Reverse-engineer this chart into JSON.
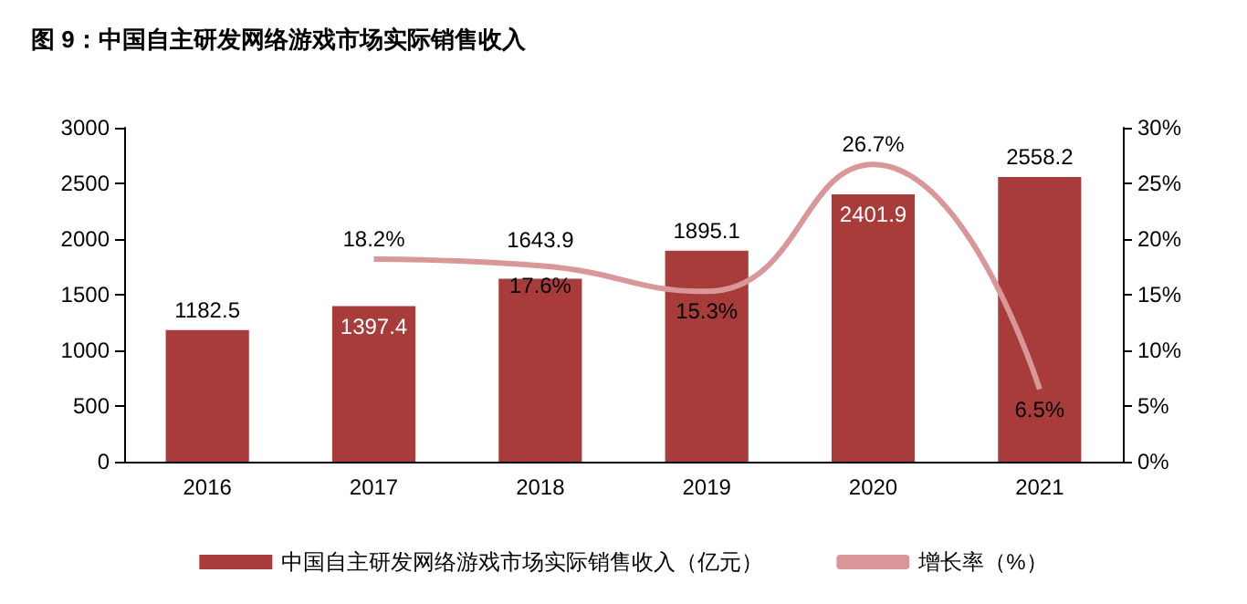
{
  "chart_data": {
    "type": "bar",
    "title": "图 9：中国自主研发网络游戏市场实际销售收入",
    "categories": [
      "2016",
      "2017",
      "2018",
      "2019",
      "2020",
      "2021"
    ],
    "series": [
      {
        "name": "中国自主研发网络游戏市场实际销售收入（亿元）",
        "type": "bar",
        "color": "#a83c3a",
        "values": [
          1182.5,
          1397.4,
          1643.9,
          1895.1,
          2401.9,
          2558.2
        ],
        "value_labels": [
          "1182.5",
          "1397.4",
          "1643.9",
          "1895.1",
          "2401.9",
          "2558.2"
        ]
      },
      {
        "name": "增长率（%）",
        "type": "line",
        "axis": "y2",
        "color": "#d9979a",
        "values": [
          null,
          18.2,
          17.6,
          15.3,
          26.7,
          6.5
        ],
        "value_labels": [
          null,
          "18.2%",
          "17.6%",
          "15.3%",
          "26.7%",
          "6.5%"
        ]
      }
    ],
    "ylim": [
      0,
      3000
    ],
    "yticks": [
      0,
      500,
      1000,
      1500,
      2000,
      2500,
      3000
    ],
    "y2lim": [
      0,
      30
    ],
    "y2ticks": [
      {
        "value": 0,
        "label": "0%"
      },
      {
        "value": 5,
        "label": "5%"
      },
      {
        "value": 10,
        "label": "10%"
      },
      {
        "value": 15,
        "label": "15%"
      },
      {
        "value": 20,
        "label": "20%"
      },
      {
        "value": 25,
        "label": "25%"
      },
      {
        "value": 30,
        "label": "30%"
      }
    ],
    "legend": "bottom",
    "grid": false,
    "marker": "none"
  }
}
